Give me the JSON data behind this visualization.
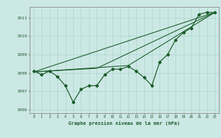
{
  "xlabel": "Graphe pression niveau de la mer (hPa)",
  "bg_color": "#cce8e4",
  "grid_color": "#aad4cc",
  "line_color": "#1a5c2a",
  "marker_color": "#1a5c2a",
  "ylim": [
    1005.8,
    1011.6
  ],
  "xlim": [
    -0.5,
    23.5
  ],
  "yticks": [
    1006,
    1007,
    1008,
    1009,
    1010,
    1011
  ],
  "xticks": [
    0,
    1,
    2,
    3,
    4,
    5,
    6,
    7,
    8,
    9,
    10,
    11,
    12,
    13,
    14,
    15,
    16,
    17,
    18,
    19,
    20,
    21,
    22,
    23
  ],
  "line1_x": [
    0,
    1,
    2,
    3,
    4,
    5,
    6,
    7,
    8,
    9,
    10,
    11,
    12,
    13,
    14,
    15,
    16,
    17,
    18,
    19,
    20,
    21,
    22,
    23
  ],
  "line1_y": [
    1008.1,
    1007.9,
    1008.1,
    1007.8,
    1007.3,
    1006.4,
    1007.1,
    1007.3,
    1007.3,
    1007.9,
    1008.2,
    1008.2,
    1008.35,
    1008.1,
    1007.75,
    1007.3,
    1008.6,
    1009.0,
    1009.8,
    1010.2,
    1010.45,
    1011.2,
    1011.3,
    1011.3
  ],
  "line2_x": [
    0,
    23
  ],
  "line2_y": [
    1008.05,
    1011.3
  ],
  "line3_x": [
    0,
    12,
    23
  ],
  "line3_y": [
    1008.05,
    1008.4,
    1011.3
  ],
  "line4_x": [
    0,
    8,
    23
  ],
  "line4_y": [
    1008.05,
    1008.25,
    1011.3
  ]
}
